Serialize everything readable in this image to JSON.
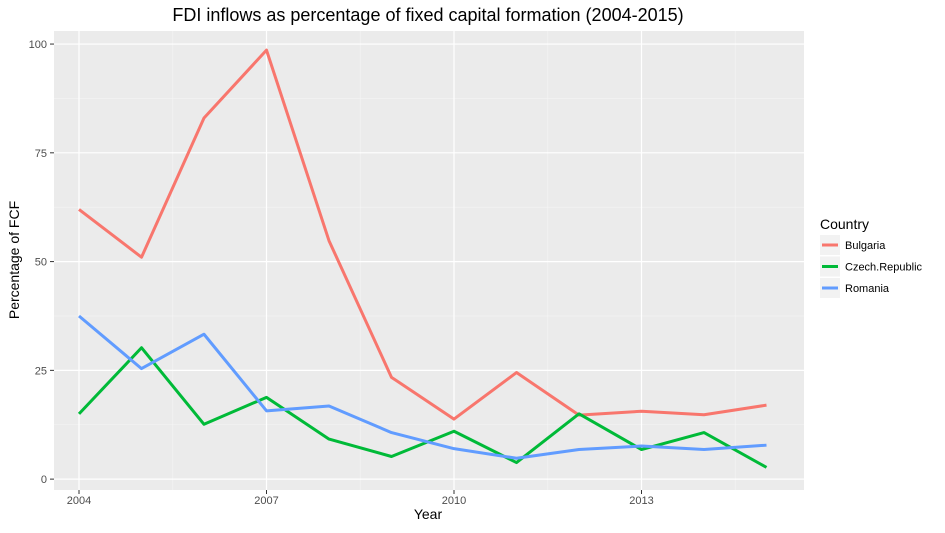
{
  "chart_data": {
    "type": "line",
    "title": "FDI inflows as percentage of fixed capital formation (2004-2015)",
    "xlabel": "Year",
    "ylabel": "Percentage of FCF",
    "x": [
      2004,
      2005,
      2006,
      2007,
      2008,
      2009,
      2010,
      2011,
      2012,
      2013,
      2014,
      2015
    ],
    "xlim": [
      2003.6,
      2015.6
    ],
    "ylim": [
      -2.5,
      103.0
    ],
    "x_ticks": [
      2004,
      2007,
      2010,
      2013
    ],
    "x_tick_labels": [
      "2004",
      "2007",
      "2010",
      "2013"
    ],
    "y_ticks": [
      0,
      25,
      50,
      75,
      100
    ],
    "y_tick_labels": [
      "0",
      "25",
      "50",
      "75",
      "100"
    ],
    "grid": true,
    "legend": {
      "title": "Country",
      "position": "right"
    },
    "series": [
      {
        "name": "Bulgaria",
        "color": "#F8766D",
        "values": [
          62.0,
          51.0,
          83.0,
          98.6,
          54.8,
          23.4,
          13.8,
          24.5,
          14.7,
          15.6,
          14.8,
          17.0
        ]
      },
      {
        "name": "Czech.Republic",
        "color": "#00BA38",
        "values": [
          15.0,
          30.2,
          12.6,
          18.8,
          9.2,
          5.2,
          11.0,
          3.8,
          15.0,
          6.8,
          10.7,
          2.7
        ]
      },
      {
        "name": "Romania",
        "color": "#619CFF",
        "values": [
          37.5,
          25.4,
          33.3,
          15.7,
          16.8,
          10.7,
          7.0,
          4.8,
          6.8,
          7.6,
          6.8,
          7.8
        ]
      }
    ]
  }
}
